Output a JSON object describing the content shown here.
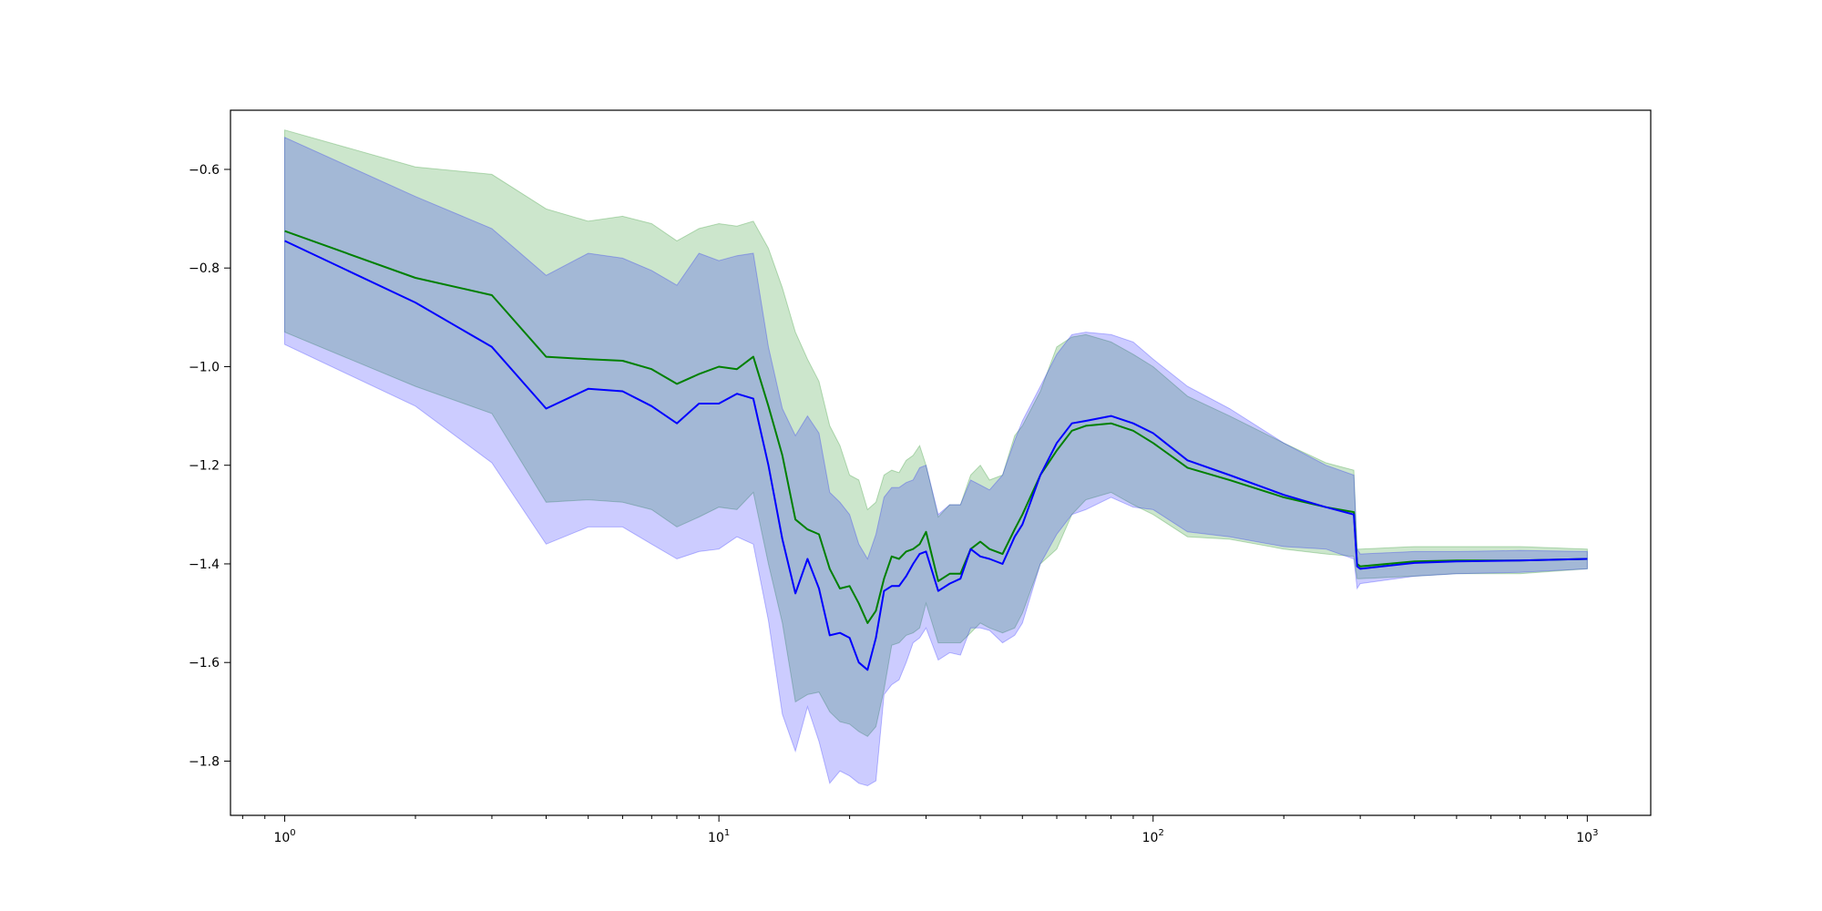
{
  "colors": {
    "green": "#008000",
    "blue": "#0000ff",
    "green_fill": "#008000",
    "blue_fill": "#0000ff",
    "fill_opacity": 0.2
  },
  "chart_data": {
    "type": "line",
    "title": "",
    "xlabel": "",
    "ylabel": "",
    "xscale": "log",
    "xlim": [
      0.75,
      1400
    ],
    "ylim": [
      -1.91,
      -0.48
    ],
    "grid": false,
    "legend": "none",
    "x_ticks": [
      {
        "value": 1,
        "base": "10",
        "exp": "0"
      },
      {
        "value": 10,
        "base": "10",
        "exp": "1"
      },
      {
        "value": 100,
        "base": "10",
        "exp": "2"
      },
      {
        "value": 1000,
        "base": "10",
        "exp": "3"
      }
    ],
    "y_ticks": [
      {
        "value": -0.6,
        "label": "−0.6"
      },
      {
        "value": -0.8,
        "label": "−0.8"
      },
      {
        "value": -1.0,
        "label": "−1.0"
      },
      {
        "value": -1.2,
        "label": "−1.2"
      },
      {
        "value": -1.4,
        "label": "−1.4"
      },
      {
        "value": -1.6,
        "label": "−1.6"
      },
      {
        "value": -1.8,
        "label": "−1.8"
      }
    ],
    "series": [
      {
        "color": "green",
        "x": [
          1,
          2,
          3,
          4,
          5,
          6,
          7,
          8,
          9,
          10,
          11,
          12,
          13,
          14,
          15,
          16,
          17,
          18,
          19,
          20,
          21,
          22,
          23,
          24,
          25,
          26,
          27,
          28,
          29,
          30,
          32,
          34,
          36,
          38,
          40,
          42,
          45,
          48,
          50,
          55,
          60,
          65,
          70,
          80,
          90,
          100,
          120,
          150,
          200,
          250,
          290,
          295,
          300,
          400,
          500,
          700,
          1000
        ],
        "y": [
          -0.725,
          -0.82,
          -0.855,
          -0.98,
          -0.985,
          -0.988,
          -1.005,
          -1.035,
          -1.015,
          -1.0,
          -1.005,
          -0.98,
          -1.08,
          -1.18,
          -1.31,
          -1.33,
          -1.34,
          -1.41,
          -1.45,
          -1.445,
          -1.48,
          -1.52,
          -1.495,
          -1.43,
          -1.385,
          -1.39,
          -1.375,
          -1.37,
          -1.36,
          -1.335,
          -1.435,
          -1.42,
          -1.42,
          -1.37,
          -1.355,
          -1.37,
          -1.38,
          -1.33,
          -1.3,
          -1.22,
          -1.17,
          -1.13,
          -1.12,
          -1.115,
          -1.13,
          -1.155,
          -1.205,
          -1.23,
          -1.265,
          -1.285,
          -1.295,
          -1.4,
          -1.405,
          -1.395,
          -1.393,
          -1.393,
          -1.39
        ],
        "band_upper": [
          -0.52,
          -0.595,
          -0.61,
          -0.68,
          -0.705,
          -0.695,
          -0.71,
          -0.745,
          -0.72,
          -0.71,
          -0.715,
          -0.705,
          -0.76,
          -0.84,
          -0.93,
          -0.985,
          -1.03,
          -1.12,
          -1.16,
          -1.22,
          -1.23,
          -1.29,
          -1.275,
          -1.22,
          -1.21,
          -1.215,
          -1.19,
          -1.18,
          -1.16,
          -1.2,
          -1.305,
          -1.28,
          -1.28,
          -1.22,
          -1.2,
          -1.23,
          -1.22,
          -1.14,
          -1.12,
          -1.05,
          -0.96,
          -0.94,
          -0.935,
          -0.95,
          -0.975,
          -1.0,
          -1.06,
          -1.1,
          -1.155,
          -1.195,
          -1.21,
          -1.37,
          -1.37,
          -1.365,
          -1.365,
          -1.365,
          -1.37
        ],
        "band_lower": [
          -0.93,
          -1.04,
          -1.095,
          -1.275,
          -1.27,
          -1.275,
          -1.29,
          -1.325,
          -1.305,
          -1.285,
          -1.29,
          -1.255,
          -1.4,
          -1.52,
          -1.68,
          -1.665,
          -1.66,
          -1.7,
          -1.72,
          -1.725,
          -1.74,
          -1.75,
          -1.73,
          -1.655,
          -1.565,
          -1.56,
          -1.545,
          -1.54,
          -1.53,
          -1.48,
          -1.56,
          -1.56,
          -1.56,
          -1.54,
          -1.52,
          -1.53,
          -1.54,
          -1.53,
          -1.5,
          -1.4,
          -1.37,
          -1.3,
          -1.27,
          -1.255,
          -1.28,
          -1.3,
          -1.345,
          -1.35,
          -1.37,
          -1.38,
          -1.385,
          -1.43,
          -1.43,
          -1.425,
          -1.42,
          -1.42,
          -1.41
        ]
      },
      {
        "color": "blue",
        "x": [
          1,
          2,
          3,
          4,
          5,
          6,
          7,
          8,
          9,
          10,
          11,
          12,
          13,
          14,
          15,
          16,
          17,
          18,
          19,
          20,
          21,
          22,
          23,
          24,
          25,
          26,
          27,
          28,
          29,
          30,
          32,
          34,
          36,
          38,
          40,
          42,
          45,
          48,
          50,
          55,
          60,
          65,
          70,
          80,
          90,
          100,
          120,
          150,
          200,
          250,
          290,
          295,
          300,
          400,
          500,
          700,
          1000
        ],
        "y": [
          -0.745,
          -0.87,
          -0.96,
          -1.085,
          -1.045,
          -1.05,
          -1.08,
          -1.115,
          -1.075,
          -1.075,
          -1.055,
          -1.065,
          -1.2,
          -1.35,
          -1.46,
          -1.39,
          -1.45,
          -1.545,
          -1.54,
          -1.55,
          -1.6,
          -1.615,
          -1.55,
          -1.455,
          -1.445,
          -1.445,
          -1.425,
          -1.4,
          -1.38,
          -1.375,
          -1.455,
          -1.44,
          -1.43,
          -1.37,
          -1.385,
          -1.39,
          -1.4,
          -1.345,
          -1.32,
          -1.22,
          -1.155,
          -1.115,
          -1.11,
          -1.1,
          -1.115,
          -1.135,
          -1.19,
          -1.22,
          -1.26,
          -1.285,
          -1.3,
          -1.405,
          -1.41,
          -1.398,
          -1.395,
          -1.393,
          -1.39
        ],
        "band_upper": [
          -0.535,
          -0.655,
          -0.72,
          -0.815,
          -0.77,
          -0.78,
          -0.805,
          -0.835,
          -0.77,
          -0.785,
          -0.775,
          -0.77,
          -0.96,
          -1.085,
          -1.14,
          -1.1,
          -1.135,
          -1.255,
          -1.275,
          -1.3,
          -1.36,
          -1.39,
          -1.34,
          -1.265,
          -1.245,
          -1.245,
          -1.235,
          -1.23,
          -1.205,
          -1.2,
          -1.3,
          -1.28,
          -1.28,
          -1.23,
          -1.24,
          -1.25,
          -1.22,
          -1.15,
          -1.11,
          -1.04,
          -0.975,
          -0.935,
          -0.93,
          -0.935,
          -0.95,
          -0.985,
          -1.04,
          -1.085,
          -1.155,
          -1.2,
          -1.22,
          -1.37,
          -1.38,
          -1.375,
          -1.375,
          -1.373,
          -1.375
        ],
        "band_lower": [
          -0.955,
          -1.08,
          -1.195,
          -1.36,
          -1.325,
          -1.325,
          -1.36,
          -1.39,
          -1.375,
          -1.37,
          -1.345,
          -1.36,
          -1.515,
          -1.705,
          -1.78,
          -1.69,
          -1.76,
          -1.845,
          -1.82,
          -1.83,
          -1.845,
          -1.85,
          -1.84,
          -1.665,
          -1.645,
          -1.635,
          -1.6,
          -1.56,
          -1.55,
          -1.53,
          -1.595,
          -1.58,
          -1.585,
          -1.53,
          -1.53,
          -1.535,
          -1.56,
          -1.545,
          -1.52,
          -1.4,
          -1.34,
          -1.3,
          -1.29,
          -1.265,
          -1.285,
          -1.29,
          -1.335,
          -1.345,
          -1.365,
          -1.37,
          -1.39,
          -1.45,
          -1.44,
          -1.425,
          -1.42,
          -1.417,
          -1.41
        ]
      }
    ]
  }
}
